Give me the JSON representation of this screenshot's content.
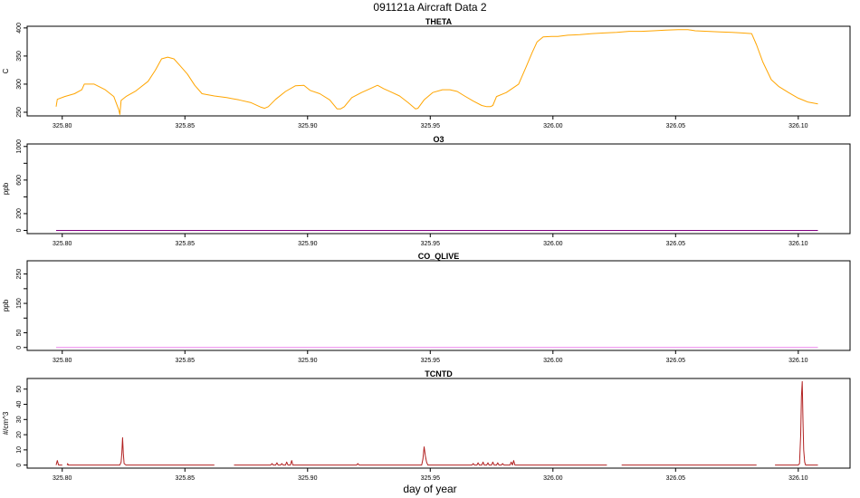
{
  "figure": {
    "title": "091121a   Aircraft Data 2",
    "xlabel": "day of year"
  },
  "chart_data": [
    {
      "type": "line",
      "title": "THETA",
      "ylabel": "C",
      "color": "#ffa500",
      "xlim": [
        325.7857,
        326.1211
      ],
      "ylim": [
        243.5,
        403
      ],
      "xticks": [
        325.8,
        325.85,
        325.9,
        325.95,
        326.0,
        326.05,
        326.1
      ],
      "xtick_labels": [
        "325.80",
        "325.85",
        "325.90",
        "325.95",
        "326.00",
        "326.05",
        "326.10"
      ],
      "yticks": [
        250,
        300,
        350,
        400
      ],
      "ytick_labels": [
        "250",
        "300",
        "350",
        "400"
      ],
      "series": [
        {
          "x": [
            325.7975,
            325.798,
            325.801,
            325.805,
            325.808,
            325.809,
            325.813,
            325.8175,
            325.821,
            325.823,
            325.8235,
            325.824,
            325.826,
            325.83,
            325.835,
            325.838,
            325.8405,
            325.843,
            325.8455,
            325.848,
            325.851,
            325.854,
            325.857,
            325.862,
            325.867,
            325.872,
            325.877,
            325.881,
            325.8825,
            325.884,
            325.887,
            325.891,
            325.895,
            325.8985,
            325.901,
            325.905,
            325.909,
            325.912,
            325.9135,
            325.915,
            325.918,
            325.922,
            325.926,
            325.9285,
            325.931,
            325.934,
            325.9375,
            325.941,
            325.944,
            325.945,
            325.9475,
            325.951,
            325.955,
            325.958,
            325.961,
            325.964,
            325.9675,
            325.971,
            325.973,
            325.9745,
            325.9755,
            325.977,
            325.981,
            325.986,
            325.989,
            325.9915,
            325.9935,
            325.996,
            325.9995,
            326.002,
            326.006,
            326.011,
            326.016,
            326.021,
            326.026,
            326.031,
            326.036,
            326.041,
            326.046,
            326.051,
            326.055,
            326.058,
            326.063,
            326.068,
            326.073,
            326.077,
            326.081,
            326.083,
            326.0855,
            326.089,
            326.092,
            326.096,
            326.1,
            326.104,
            326.108
          ],
          "y": [
            260,
            273,
            278,
            283,
            290,
            300,
            300,
            290,
            278,
            255,
            246,
            271,
            278,
            288,
            305,
            325,
            345,
            348,
            345,
            333,
            318,
            298,
            283,
            279,
            276,
            272,
            267,
            259,
            257,
            260,
            273,
            287,
            297,
            298,
            289,
            283,
            272,
            256,
            256,
            260,
            276,
            285,
            293,
            298,
            292,
            286,
            279,
            267,
            256,
            257,
            272,
            285,
            290,
            290,
            287,
            279,
            270,
            262,
            260,
            260,
            262,
            278,
            285,
            300,
            330,
            356,
            375,
            384,
            385,
            385,
            387,
            388,
            390,
            391,
            392,
            394,
            394,
            395,
            396,
            397,
            397,
            395,
            394,
            393,
            392,
            391,
            390,
            370,
            340,
            308,
            296,
            285,
            275,
            268,
            265
          ]
        }
      ]
    },
    {
      "type": "line",
      "title": "O3",
      "ylabel": "ppb",
      "color": "#800080",
      "xlim": [
        325.7857,
        326.1211
      ],
      "ylim": [
        -38,
        1030
      ],
      "xticks": [
        325.8,
        325.85,
        325.9,
        325.95,
        326.0,
        326.05,
        326.1
      ],
      "xtick_labels": [
        "325.80",
        "325.85",
        "325.90",
        "325.95",
        "326.00",
        "326.05",
        "326.10"
      ],
      "yticks": [
        0,
        200,
        400,
        600,
        800,
        1000
      ],
      "ytick_labels": [
        "0",
        "200",
        "",
        "600",
        "",
        "1000"
      ],
      "series": [
        {
          "x": [
            325.7975,
            326.108
          ],
          "y": [
            0,
            0
          ]
        }
      ]
    },
    {
      "type": "line",
      "title": "CO_QLIVE",
      "ylabel": "ppb",
      "color": "#ee82ee",
      "xlim": [
        325.7857,
        326.1211
      ],
      "ylim": [
        -10,
        295
      ],
      "xticks": [
        325.8,
        325.85,
        325.9,
        325.95,
        326.0,
        326.05,
        326.1
      ],
      "xtick_labels": [
        "325.80",
        "325.85",
        "325.90",
        "325.95",
        "326.00",
        "326.05",
        "326.10"
      ],
      "yticks": [
        0,
        50,
        100,
        150,
        200,
        250
      ],
      "ytick_labels": [
        "0",
        "50",
        "",
        "150",
        "",
        "250"
      ],
      "series": [
        {
          "x": [
            325.7975,
            326.108
          ],
          "y": [
            0,
            0
          ]
        }
      ]
    },
    {
      "type": "line",
      "title": "TCNTD",
      "ylabel": "#/cm^3",
      "color": "#b22222",
      "xlim": [
        325.7857,
        326.1211
      ],
      "ylim": [
        -2,
        57
      ],
      "xticks": [
        325.8,
        325.85,
        325.9,
        325.95,
        326.0,
        326.05,
        326.1
      ],
      "xtick_labels": [
        "325.80",
        "325.85",
        "325.90",
        "325.95",
        "326.00",
        "326.05",
        "326.10"
      ],
      "yticks": [
        0,
        10,
        20,
        30,
        40,
        50
      ],
      "ytick_labels": [
        "0",
        "10",
        "20",
        "30",
        "40",
        "50"
      ],
      "series": [
        {
          "x": [
            325.7975,
            325.798,
            325.7985,
            325.8
          ],
          "y": [
            0,
            3,
            0,
            0
          ]
        },
        {
          "x": [
            325.802,
            325.8022,
            325.8025,
            325.8235,
            325.824,
            325.8243,
            325.8246,
            325.8249,
            325.8252,
            325.826,
            325.862
          ],
          "y": [
            0,
            1,
            0,
            0,
            2,
            8,
            18,
            8,
            1,
            0,
            0
          ]
        },
        {
          "x": [
            325.87,
            325.885,
            325.8855,
            325.886,
            325.887,
            325.8875,
            325.888,
            325.889,
            325.8895,
            325.89,
            325.891,
            325.8915,
            325.892,
            325.893,
            325.8935,
            325.894,
            325.92,
            325.9205,
            325.921,
            325.9465,
            325.947,
            325.9475,
            325.948,
            325.9485,
            325.949,
            325.95,
            325.967,
            325.9675,
            325.968,
            325.969,
            325.9695,
            325.97,
            325.971,
            325.9715,
            325.972,
            325.973,
            325.9735,
            325.974,
            325.975,
            325.9755,
            325.976,
            325.977,
            325.9775,
            325.978,
            325.979,
            325.9795,
            325.98,
            325.9825,
            325.983,
            325.9835,
            325.984,
            325.9845,
            325.985,
            325.99,
            326.022
          ],
          "y": [
            0,
            0,
            1,
            0,
            0,
            1.5,
            0,
            0,
            1,
            0,
            0,
            2,
            0,
            0,
            3,
            0,
            0,
            1,
            0,
            0,
            4,
            12,
            6,
            2,
            0,
            0,
            0,
            1,
            0,
            0,
            1.5,
            0,
            0,
            2,
            0,
            0,
            1.5,
            0,
            0,
            2,
            0,
            0,
            1.5,
            0,
            0,
            1,
            0,
            0,
            2,
            0,
            3,
            0,
            0,
            0,
            0
          ]
        },
        {
          "x": [
            326.028,
            326.083
          ],
          "y": [
            0,
            0
          ]
        },
        {
          "x": [
            326.0905,
            326.1,
            326.1005,
            326.101,
            326.1013,
            326.1016,
            326.1019,
            326.1022,
            326.1026,
            326.103,
            326.108
          ],
          "y": [
            0,
            0,
            1,
            20,
            45,
            55,
            30,
            10,
            2,
            0,
            0
          ]
        }
      ]
    }
  ]
}
